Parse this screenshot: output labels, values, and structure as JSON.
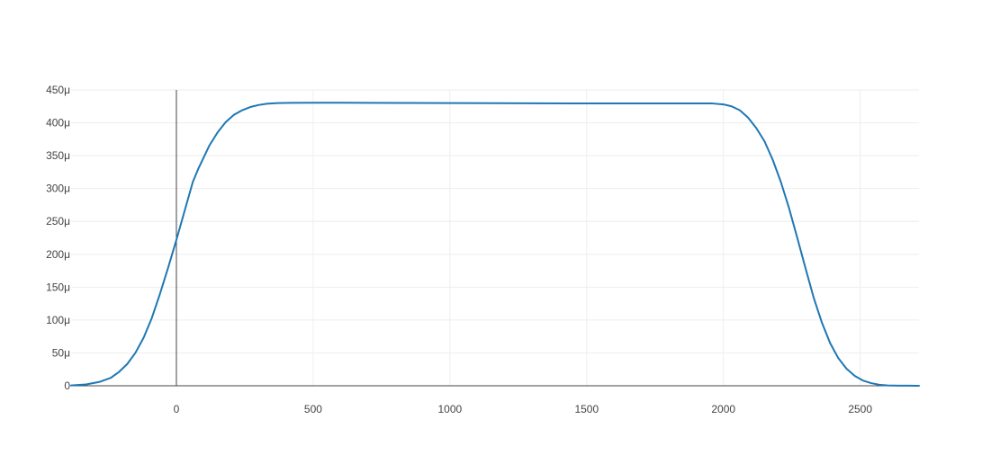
{
  "chart_data": {
    "type": "line",
    "title": "",
    "xlabel": "",
    "ylabel": "",
    "xlim": [
      -385,
      2715
    ],
    "ylim": [
      0,
      0.00045
    ],
    "grid": true,
    "legend": "none",
    "x_ticks": [
      {
        "value": 0,
        "label": "0"
      },
      {
        "value": 500,
        "label": "500"
      },
      {
        "value": 1000,
        "label": "1000"
      },
      {
        "value": 1500,
        "label": "1500"
      },
      {
        "value": 2000,
        "label": "2000"
      },
      {
        "value": 2500,
        "label": "2500"
      }
    ],
    "y_ticks": [
      {
        "value": 0,
        "label": "0"
      },
      {
        "value": 5e-05,
        "label": "50μ"
      },
      {
        "value": 0.0001,
        "label": "100μ"
      },
      {
        "value": 0.00015,
        "label": "150μ"
      },
      {
        "value": 0.0002,
        "label": "200μ"
      },
      {
        "value": 0.00025,
        "label": "250μ"
      },
      {
        "value": 0.0003,
        "label": "300μ"
      },
      {
        "value": 0.00035,
        "label": "350μ"
      },
      {
        "value": 0.0004,
        "label": "400μ"
      },
      {
        "value": 0.00045,
        "label": "450μ"
      }
    ],
    "series": [
      {
        "color": "#1f77b4",
        "x": [
          -385,
          -330,
          -280,
          -240,
          -210,
          -180,
          -150,
          -120,
          -90,
          -60,
          -30,
          0,
          30,
          60,
          80,
          120,
          150,
          180,
          210,
          240,
          270,
          300,
          330,
          370,
          420,
          500,
          700,
          1000,
          1500,
          1960,
          2000,
          2030,
          2060,
          2090,
          2120,
          2150,
          2180,
          2210,
          2240,
          2270,
          2300,
          2330,
          2360,
          2390,
          2420,
          2450,
          2480,
          2510,
          2540,
          2570,
          2600,
          2640,
          2680,
          2715
        ],
        "y": [
          5e-07,
          2e-06,
          6e-06,
          1.2e-05,
          2.1e-05,
          3.3e-05,
          5e-05,
          7.3e-05,
          0.000103,
          0.00014,
          0.00018,
          0.000222,
          0.000266,
          0.00031,
          0.00033,
          0.000365,
          0.000385,
          0.000401,
          0.000412,
          0.000419,
          0.000424,
          0.000427,
          0.000429,
          0.00043,
          0.0004303,
          0.0004305,
          0.0004304,
          0.00043,
          0.0004295,
          0.0004294,
          0.000428,
          0.000425,
          0.000419,
          0.000408,
          0.000392,
          0.000372,
          0.000344,
          0.00031,
          0.00027,
          0.000225,
          0.000179,
          0.000134,
          9.6e-05,
          6.5e-05,
          4.2e-05,
          2.6e-05,
          1.5e-05,
          8e-06,
          4e-06,
          1.5e-06,
          5e-07,
          2e-07,
          1e-07,
          0.0
        ]
      }
    ]
  }
}
